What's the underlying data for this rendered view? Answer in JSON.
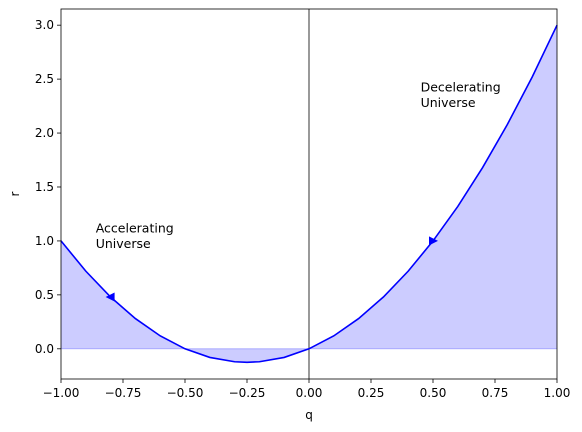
{
  "chart_data": {
    "type": "line",
    "title": "",
    "xlabel": "q",
    "ylabel": "r",
    "xlim": [
      -1.0,
      1.0
    ],
    "ylim": [
      -0.28,
      3.15
    ],
    "xticks": [
      -1.0,
      -0.75,
      -0.5,
      -0.25,
      0.0,
      0.25,
      0.5,
      0.75,
      1.0
    ],
    "xtick_labels": [
      "−1.00",
      "−0.75",
      "−0.50",
      "−0.25",
      "0.00",
      "0.25",
      "0.50",
      "0.75",
      "1.00"
    ],
    "yticks": [
      0.0,
      0.5,
      1.0,
      1.5,
      2.0,
      2.5,
      3.0
    ],
    "ytick_labels": [
      "0.0",
      "0.5",
      "1.0",
      "1.5",
      "2.0",
      "2.5",
      "3.0"
    ],
    "grid": false,
    "series": [
      {
        "color": "#0000ff",
        "x": [
          -1.0,
          -0.9,
          -0.8,
          -0.7,
          -0.6,
          -0.5,
          -0.4,
          -0.3,
          -0.25,
          -0.2,
          -0.1,
          0.0,
          0.1,
          0.2,
          0.3,
          0.4,
          0.5,
          0.6,
          0.7,
          0.8,
          0.9,
          1.0
        ],
        "y": [
          1.0,
          0.72,
          0.48,
          0.28,
          0.12,
          0.0,
          -0.08,
          -0.12,
          -0.125,
          -0.12,
          -0.08,
          0.0,
          0.12,
          0.28,
          0.48,
          0.72,
          1.0,
          1.32,
          1.68,
          2.08,
          2.52,
          3.0
        ]
      }
    ],
    "fill": {
      "color": "#0000ff",
      "opacity": 0.2,
      "between": "curve and r = 0"
    },
    "vline_x": 0.0,
    "arrows": [
      {
        "x": -0.8,
        "y": 0.48,
        "direction": "left"
      },
      {
        "x": 0.5,
        "y": 1.0,
        "direction": "right"
      }
    ],
    "annotations": [
      {
        "lines": [
          "Accelerating",
          "Universe"
        ],
        "x": -0.86,
        "y": 1.125
      },
      {
        "lines": [
          "Decelerating",
          "Universe"
        ],
        "x": 0.45,
        "y": 2.43
      }
    ]
  }
}
